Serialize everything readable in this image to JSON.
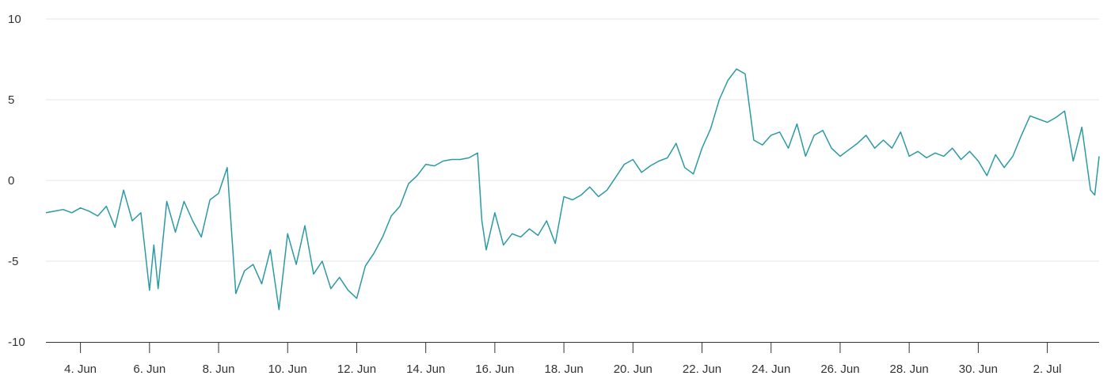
{
  "chart_data": {
    "type": "line",
    "title": "",
    "xlabel": "",
    "ylabel": "",
    "ylim": [
      -10,
      10
    ],
    "grid": true,
    "yticks": [
      "10",
      "5",
      "0",
      "-5",
      "-10"
    ],
    "xticks": [
      "4. Jun",
      "6. Jun",
      "8. Jun",
      "10. Jun",
      "12. Jun",
      "14. Jun",
      "16. Jun",
      "18. Jun",
      "20. Jun",
      "22. Jun",
      "24. Jun",
      "26. Jun",
      "28. Jun",
      "30. Jun",
      "2. Jul"
    ],
    "xlim": [
      "2024-06-03T00:00",
      "2024-07-03T12:00"
    ],
    "series": [
      {
        "color": "#2b9aa3",
        "points": [
          [
            "2024-06-03T00:00",
            -2.0
          ],
          [
            "2024-06-03T06:00",
            -1.9
          ],
          [
            "2024-06-03T12:00",
            -1.8
          ],
          [
            "2024-06-03T18:00",
            -2.0
          ],
          [
            "2024-06-04T00:00",
            -1.7
          ],
          [
            "2024-06-04T06:00",
            -1.9
          ],
          [
            "2024-06-04T12:00",
            -2.2
          ],
          [
            "2024-06-04T18:00",
            -1.6
          ],
          [
            "2024-06-05T00:00",
            -2.9
          ],
          [
            "2024-06-05T06:00",
            -0.6
          ],
          [
            "2024-06-05T12:00",
            -2.5
          ],
          [
            "2024-06-05T18:00",
            -2.0
          ],
          [
            "2024-06-06T00:00",
            -6.8
          ],
          [
            "2024-06-06T03:00",
            -4.0
          ],
          [
            "2024-06-06T06:00",
            -6.7
          ],
          [
            "2024-06-06T12:00",
            -1.3
          ],
          [
            "2024-06-06T18:00",
            -3.2
          ],
          [
            "2024-06-07T00:00",
            -1.3
          ],
          [
            "2024-06-07T06:00",
            -2.5
          ],
          [
            "2024-06-07T12:00",
            -3.5
          ],
          [
            "2024-06-07T18:00",
            -1.2
          ],
          [
            "2024-06-08T00:00",
            -0.8
          ],
          [
            "2024-06-08T06:00",
            0.8
          ],
          [
            "2024-06-08T12:00",
            -7.0
          ],
          [
            "2024-06-08T18:00",
            -5.6
          ],
          [
            "2024-06-09T00:00",
            -5.2
          ],
          [
            "2024-06-09T06:00",
            -6.4
          ],
          [
            "2024-06-09T12:00",
            -4.3
          ],
          [
            "2024-06-09T18:00",
            -8.0
          ],
          [
            "2024-06-10T00:00",
            -3.3
          ],
          [
            "2024-06-10T06:00",
            -5.2
          ],
          [
            "2024-06-10T12:00",
            -2.8
          ],
          [
            "2024-06-10T18:00",
            -5.8
          ],
          [
            "2024-06-11T00:00",
            -5.0
          ],
          [
            "2024-06-11T06:00",
            -6.7
          ],
          [
            "2024-06-11T12:00",
            -6.0
          ],
          [
            "2024-06-11T18:00",
            -6.8
          ],
          [
            "2024-06-12T00:00",
            -7.3
          ],
          [
            "2024-06-12T06:00",
            -5.3
          ],
          [
            "2024-06-12T12:00",
            -4.5
          ],
          [
            "2024-06-12T18:00",
            -3.5
          ],
          [
            "2024-06-13T00:00",
            -2.2
          ],
          [
            "2024-06-13T06:00",
            -1.6
          ],
          [
            "2024-06-13T12:00",
            -0.2
          ],
          [
            "2024-06-13T18:00",
            0.3
          ],
          [
            "2024-06-14T00:00",
            1.0
          ],
          [
            "2024-06-14T06:00",
            0.9
          ],
          [
            "2024-06-14T12:00",
            1.2
          ],
          [
            "2024-06-14T18:00",
            1.3
          ],
          [
            "2024-06-15T00:00",
            1.3
          ],
          [
            "2024-06-15T06:00",
            1.4
          ],
          [
            "2024-06-15T12:00",
            1.7
          ],
          [
            "2024-06-15T15:00",
            -2.5
          ],
          [
            "2024-06-15T18:00",
            -4.3
          ],
          [
            "2024-06-16T00:00",
            -2.0
          ],
          [
            "2024-06-16T06:00",
            -4.0
          ],
          [
            "2024-06-16T12:00",
            -3.3
          ],
          [
            "2024-06-16T18:00",
            -3.5
          ],
          [
            "2024-06-17T00:00",
            -3.0
          ],
          [
            "2024-06-17T06:00",
            -3.4
          ],
          [
            "2024-06-17T12:00",
            -2.5
          ],
          [
            "2024-06-17T18:00",
            -3.9
          ],
          [
            "2024-06-18T00:00",
            -1.0
          ],
          [
            "2024-06-18T06:00",
            -1.2
          ],
          [
            "2024-06-18T12:00",
            -0.9
          ],
          [
            "2024-06-18T18:00",
            -0.4
          ],
          [
            "2024-06-19T00:00",
            -1.0
          ],
          [
            "2024-06-19T06:00",
            -0.6
          ],
          [
            "2024-06-19T12:00",
            0.2
          ],
          [
            "2024-06-19T18:00",
            1.0
          ],
          [
            "2024-06-20T00:00",
            1.3
          ],
          [
            "2024-06-20T06:00",
            0.5
          ],
          [
            "2024-06-20T12:00",
            0.9
          ],
          [
            "2024-06-20T18:00",
            1.2
          ],
          [
            "2024-06-21T00:00",
            1.4
          ],
          [
            "2024-06-21T06:00",
            2.3
          ],
          [
            "2024-06-21T12:00",
            0.8
          ],
          [
            "2024-06-21T18:00",
            0.4
          ],
          [
            "2024-06-22T00:00",
            2.0
          ],
          [
            "2024-06-22T06:00",
            3.2
          ],
          [
            "2024-06-22T12:00",
            5.0
          ],
          [
            "2024-06-22T18:00",
            6.2
          ],
          [
            "2024-06-23T00:00",
            6.9
          ],
          [
            "2024-06-23T06:00",
            6.6
          ],
          [
            "2024-06-23T12:00",
            2.5
          ],
          [
            "2024-06-23T18:00",
            2.2
          ],
          [
            "2024-06-24T00:00",
            2.8
          ],
          [
            "2024-06-24T06:00",
            3.0
          ],
          [
            "2024-06-24T12:00",
            2.0
          ],
          [
            "2024-06-24T18:00",
            3.5
          ],
          [
            "2024-06-25T00:00",
            1.5
          ],
          [
            "2024-06-25T06:00",
            2.8
          ],
          [
            "2024-06-25T12:00",
            3.1
          ],
          [
            "2024-06-25T18:00",
            2.0
          ],
          [
            "2024-06-26T00:00",
            1.5
          ],
          [
            "2024-06-26T06:00",
            1.9
          ],
          [
            "2024-06-26T12:00",
            2.3
          ],
          [
            "2024-06-26T18:00",
            2.8
          ],
          [
            "2024-06-27T00:00",
            2.0
          ],
          [
            "2024-06-27T06:00",
            2.5
          ],
          [
            "2024-06-27T12:00",
            2.0
          ],
          [
            "2024-06-27T18:00",
            3.0
          ],
          [
            "2024-06-28T00:00",
            1.5
          ],
          [
            "2024-06-28T06:00",
            1.8
          ],
          [
            "2024-06-28T12:00",
            1.4
          ],
          [
            "2024-06-28T18:00",
            1.7
          ],
          [
            "2024-06-29T00:00",
            1.5
          ],
          [
            "2024-06-29T06:00",
            2.0
          ],
          [
            "2024-06-29T12:00",
            1.3
          ],
          [
            "2024-06-29T18:00",
            1.8
          ],
          [
            "2024-06-30T00:00",
            1.2
          ],
          [
            "2024-06-30T06:00",
            0.3
          ],
          [
            "2024-06-30T12:00",
            1.6
          ],
          [
            "2024-06-30T18:00",
            0.8
          ],
          [
            "2024-07-01T00:00",
            1.5
          ],
          [
            "2024-07-01T06:00",
            2.8
          ],
          [
            "2024-07-01T12:00",
            4.0
          ],
          [
            "2024-07-01T18:00",
            3.8
          ],
          [
            "2024-07-02T00:00",
            3.6
          ],
          [
            "2024-07-02T06:00",
            3.9
          ],
          [
            "2024-07-02T12:00",
            4.3
          ],
          [
            "2024-07-02T18:00",
            1.2
          ],
          [
            "2024-07-03T00:00",
            3.3
          ],
          [
            "2024-07-03T06:00",
            -0.6
          ],
          [
            "2024-07-03T09:00",
            -0.9
          ],
          [
            "2024-07-03T12:00",
            1.5
          ]
        ]
      }
    ]
  }
}
